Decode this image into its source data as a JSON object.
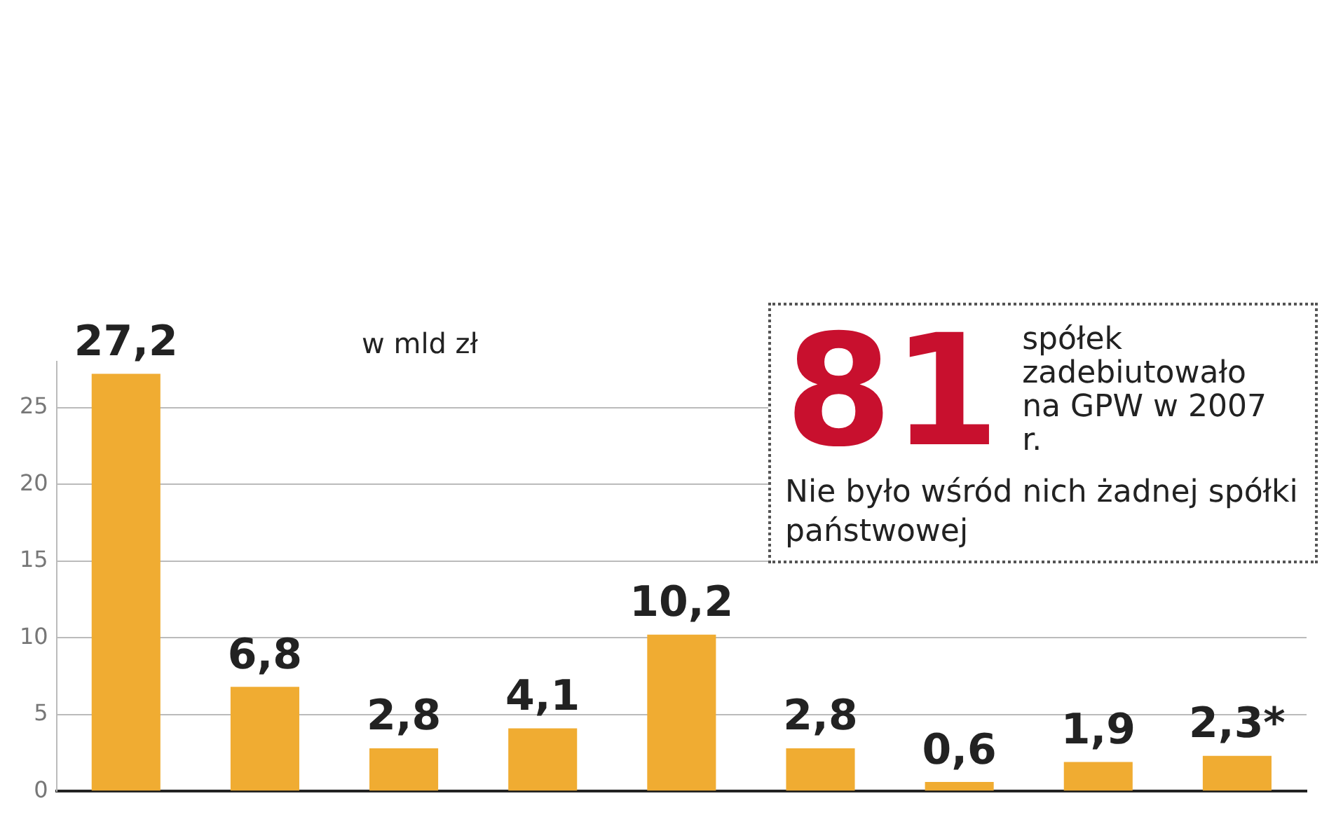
{
  "chart_data": {
    "type": "bar",
    "categories": [
      null,
      null,
      null,
      null,
      null,
      null,
      null,
      null,
      null
    ],
    "values": [
      27.2,
      6.8,
      2.8,
      4.1,
      10.2,
      2.8,
      0.6,
      1.9,
      2.3
    ],
    "value_labels": [
      "27,2",
      "6,8",
      "2,8",
      "4,1",
      "10,2",
      "2,8",
      "0,6",
      "1,9",
      "2,3*"
    ],
    "color": "#f0ac32",
    "ylim": [
      0,
      28
    ],
    "yticks": [
      0,
      5,
      10,
      15,
      20,
      25
    ],
    "grid": "y",
    "legend": false,
    "annotations": [
      "w mld zł",
      "81",
      "spółek zadebiutowało na GPW w 2007 r.",
      "Nie było wśród nich żadnej spółki państwowej"
    ]
  }
}
